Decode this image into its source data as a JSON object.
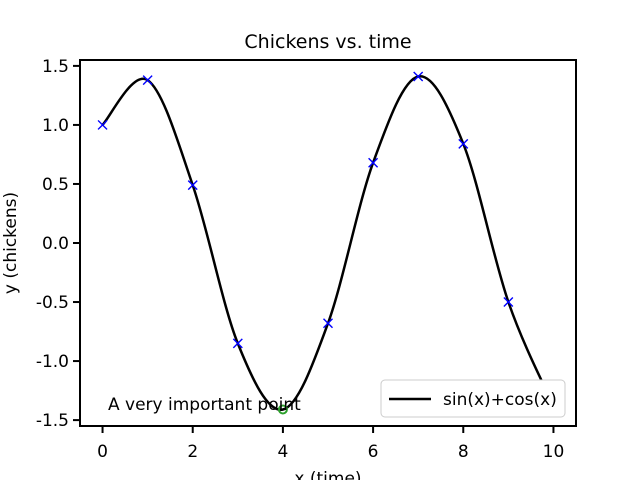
{
  "chart_data": {
    "type": "line",
    "title": "Chickens vs. time",
    "xlabel": "x (time)",
    "ylabel": "y (chickens)",
    "xlim": [
      -0.5,
      10.5
    ],
    "ylim": [
      -1.55,
      1.55
    ],
    "x_ticks": [
      0,
      2,
      4,
      6,
      8,
      10
    ],
    "y_ticks": [
      -1.5,
      -1.0,
      -0.5,
      0.0,
      0.5,
      1.0,
      1.5
    ],
    "x_tick_labels": [
      "0",
      "2",
      "4",
      "6",
      "8",
      "10"
    ],
    "y_tick_labels": [
      "-1.5",
      "-1.0",
      "-0.5",
      "0.0",
      "0.5",
      "1.0",
      "1.5"
    ],
    "grid": false,
    "legend": {
      "position": "bottom-right",
      "entries": [
        "sin(x)+cos(x)"
      ]
    },
    "series": [
      {
        "name": "sin(x)+cos(x)",
        "color": "#000000",
        "x": [
          0,
          1,
          2,
          3,
          4,
          5,
          6,
          7,
          8,
          9,
          10
        ],
        "y": [
          1.0,
          1.38,
          0.49,
          -0.85,
          -1.41,
          -0.68,
          0.68,
          1.41,
          0.84,
          -0.5,
          -1.38
        ]
      }
    ],
    "markers": {
      "color": "#0000ff",
      "symbol": "x",
      "x": [
        0,
        1,
        2,
        3,
        5,
        6,
        7,
        8,
        9
      ],
      "y": [
        1.0,
        1.38,
        0.49,
        -0.85,
        -0.68,
        0.68,
        1.41,
        0.84,
        -0.5
      ]
    },
    "highlight_point": {
      "x": 4,
      "y": -1.41,
      "color": "#2ca02c"
    },
    "annotations": [
      {
        "text": "A very important point",
        "x": 4,
        "y": -1.41
      }
    ]
  }
}
